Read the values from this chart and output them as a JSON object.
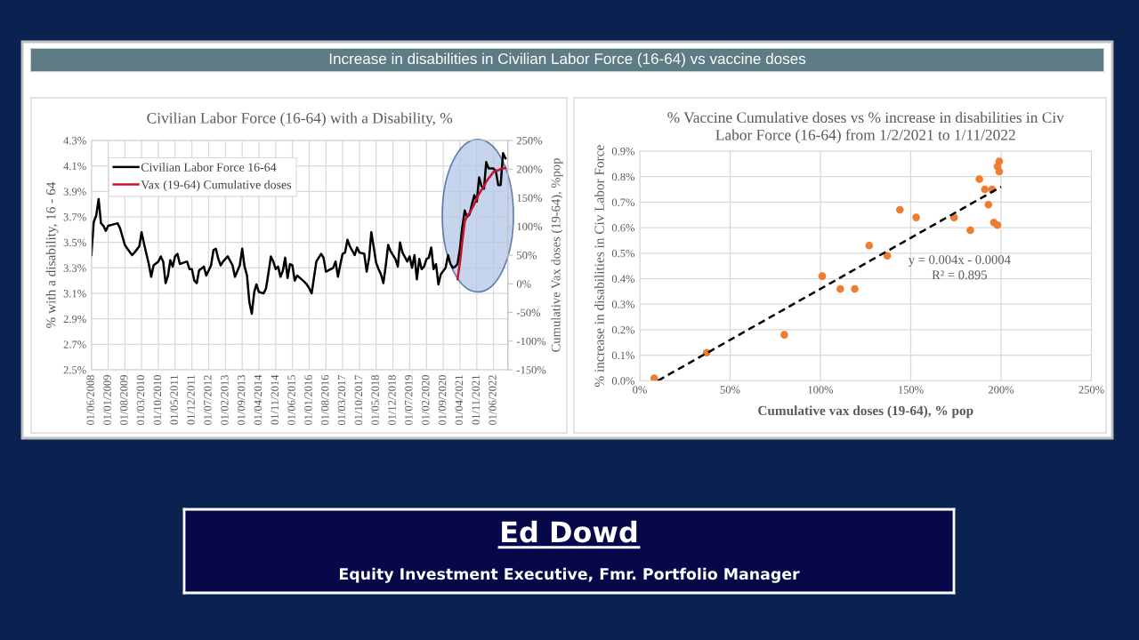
{
  "chart_data": [
    {
      "type": "other",
      "title": "Increase in disabilities in Civilian Labor Force (16-64) vs vaccine doses"
    },
    {
      "type": "line",
      "title": "Civilian Labor Force (16-64) with a Disability, %",
      "ylabel": "% with a disability, 16 - 64",
      "y2label": "Cumulative Vax doses (19-64), %pop",
      "x": [
        "2008-06",
        "2008-07",
        "2008-08",
        "2008-09",
        "2008-10",
        "2008-11",
        "2008-12",
        "2009-01",
        "2009-03",
        "2009-05",
        "2009-06",
        "2009-08",
        "2009-09",
        "2009-11",
        "2009-12",
        "2010-02",
        "2010-03",
        "2010-04",
        "2010-06",
        "2010-07",
        "2010-08",
        "2010-10",
        "2010-11",
        "2010-12",
        "2011-01",
        "2011-02",
        "2011-03",
        "2011-04",
        "2011-05",
        "2011-06",
        "2011-07",
        "2011-10",
        "2011-11",
        "2011-12",
        "2012-01",
        "2012-02",
        "2012-03",
        "2012-05",
        "2012-06",
        "2012-08",
        "2012-09",
        "2012-10",
        "2012-11",
        "2012-12",
        "2013-01",
        "2013-03",
        "2013-05",
        "2013-06",
        "2013-08",
        "2013-09",
        "2013-10",
        "2013-11",
        "2013-12",
        "2014-01",
        "2014-02",
        "2014-03",
        "2014-04",
        "2014-06",
        "2014-07",
        "2014-08",
        "2014-09",
        "2014-10",
        "2014-11",
        "2014-12",
        "2015-01",
        "2015-02",
        "2015-03",
        "2015-04",
        "2015-05",
        "2015-06",
        "2015-07",
        "2015-08",
        "2015-11",
        "2015-12",
        "2016-01",
        "2016-02",
        "2016-03",
        "2016-04",
        "2016-05",
        "2016-06",
        "2016-07",
        "2016-08",
        "2016-11",
        "2016-12",
        "2017-01",
        "2017-02",
        "2017-03",
        "2017-04",
        "2017-05",
        "2017-06",
        "2017-08",
        "2017-09",
        "2017-10",
        "2017-12",
        "2018-01",
        "2018-02",
        "2018-03",
        "2018-04",
        "2018-05",
        "2018-06",
        "2018-07",
        "2018-08",
        "2018-09",
        "2018-10",
        "2018-11",
        "2019-01",
        "2019-02",
        "2019-03",
        "2019-04",
        "2019-06",
        "2019-07",
        "2019-08",
        "2019-09",
        "2019-10",
        "2019-11",
        "2019-12",
        "2020-01",
        "2020-02",
        "2020-03",
        "2020-04",
        "2020-05",
        "2020-06",
        "2020-07",
        "2020-08",
        "2020-10",
        "2020-11",
        "2020-12",
        "2021-01",
        "2021-02",
        "2021-03",
        "2021-04",
        "2021-05",
        "2021-06",
        "2021-07",
        "2021-08",
        "2021-09",
        "2021-10",
        "2021-11",
        "2021-12",
        "2022-01",
        "2022-02",
        "2022-03",
        "2022-04",
        "2022-06",
        "2022-07",
        "2022-08",
        "2022-09",
        "2022-10",
        "2022-11"
      ],
      "series": [
        {
          "name": "Civilian Labor Force 16-64",
          "color": "#000000",
          "values": [
            3.4,
            3.66,
            3.71,
            3.84,
            3.65,
            3.63,
            3.59,
            3.63,
            3.64,
            3.65,
            3.61,
            3.48,
            3.45,
            3.4,
            3.42,
            3.47,
            3.58,
            3.49,
            3.33,
            3.23,
            3.32,
            3.35,
            3.39,
            3.35,
            3.18,
            3.24,
            3.36,
            3.31,
            3.39,
            3.41,
            3.33,
            3.35,
            3.29,
            3.29,
            3.2,
            3.18,
            3.28,
            3.31,
            3.24,
            3.32,
            3.44,
            3.45,
            3.37,
            3.32,
            3.35,
            3.39,
            3.32,
            3.23,
            3.32,
            3.45,
            3.31,
            3.24,
            3.03,
            2.94,
            3.11,
            3.17,
            3.11,
            3.1,
            3.14,
            3.26,
            3.39,
            3.35,
            3.29,
            3.31,
            3.23,
            3.28,
            3.38,
            3.22,
            3.33,
            3.32,
            3.2,
            3.24,
            3.19,
            3.17,
            3.14,
            3.1,
            3.22,
            3.35,
            3.38,
            3.41,
            3.38,
            3.27,
            3.3,
            3.35,
            3.23,
            3.33,
            3.41,
            3.42,
            3.52,
            3.47,
            3.4,
            3.46,
            3.42,
            3.41,
            3.27,
            3.38,
            3.58,
            3.46,
            3.34,
            3.29,
            3.25,
            3.18,
            3.32,
            3.48,
            3.43,
            3.37,
            3.31,
            3.5,
            3.42,
            3.35,
            3.39,
            3.3,
            3.4,
            3.21,
            3.37,
            3.29,
            3.31,
            3.37,
            3.38,
            3.46,
            3.29,
            3.33,
            3.17,
            3.25,
            3.3,
            3.4,
            3.33,
            3.3,
            3.31,
            3.33,
            3.45,
            3.62,
            3.75,
            3.7,
            3.72,
            3.8,
            3.87,
            3.82,
            4.01,
            3.94,
            3.92,
            4.13,
            4.08,
            4.08,
            4.06,
            3.95,
            3.95,
            4.2,
            4.16
          ]
        },
        {
          "name": "Vax (19-64) Cumulative doses",
          "color": "#c8102e",
          "axis": "y2",
          "x": [
            "2021-03",
            "2021-04",
            "2021-05",
            "2021-06",
            "2021-07",
            "2021-08",
            "2021-09",
            "2021-10",
            "2021-11",
            "2021-12",
            "2022-01",
            "2022-02",
            "2022-03",
            "2022-04",
            "2022-05",
            "2022-06",
            "2022-07",
            "2022-08",
            "2022-09",
            "2022-10",
            "2022-11"
          ],
          "values": [
            8,
            37,
            74,
            108,
            118,
            123,
            131,
            139,
            149,
            157,
            164,
            170,
            178,
            184,
            189,
            195,
            197,
            198,
            200,
            201,
            202
          ]
        }
      ],
      "xlim": [
        "2008-06",
        "2022-12"
      ],
      "xticks": [
        {
          "value": "2008-06",
          "label": "01/06/2008"
        },
        {
          "value": "2009-01",
          "label": "01/01/2009"
        },
        {
          "value": "2009-08",
          "label": "01/08/2009"
        },
        {
          "value": "2010-03",
          "label": "01/03/2010"
        },
        {
          "value": "2010-10",
          "label": "01/10/2010"
        },
        {
          "value": "2011-05",
          "label": "01/05/2011"
        },
        {
          "value": "2011-12",
          "label": "01/12/2011"
        },
        {
          "value": "2012-07",
          "label": "01/07/2012"
        },
        {
          "value": "2013-02",
          "label": "01/02/2013"
        },
        {
          "value": "2013-09",
          "label": "01/09/2013"
        },
        {
          "value": "2014-04",
          "label": "01/04/2014"
        },
        {
          "value": "2014-11",
          "label": "01/11/2014"
        },
        {
          "value": "2015-06",
          "label": "01/06/2015"
        },
        {
          "value": "2016-01",
          "label": "01/01/2016"
        },
        {
          "value": "2016-08",
          "label": "01/08/2016"
        },
        {
          "value": "2017-03",
          "label": "01/03/2017"
        },
        {
          "value": "2017-10",
          "label": "01/10/2017"
        },
        {
          "value": "2018-05",
          "label": "01/05/2018"
        },
        {
          "value": "2018-12",
          "label": "01/12/2018"
        },
        {
          "value": "2019-07",
          "label": "01/07/2019"
        },
        {
          "value": "2020-02",
          "label": "01/02/2020"
        },
        {
          "value": "2020-09",
          "label": "01/09/2020"
        },
        {
          "value": "2021-04",
          "label": "01/04/2021"
        },
        {
          "value": "2021-11",
          "label": "01/11/2021"
        },
        {
          "value": "2022-06",
          "label": "01/06/2022"
        }
      ],
      "ylim": [
        2.5,
        4.3
      ],
      "yticks": [
        {
          "value": 2.5,
          "label": "2.5%"
        },
        {
          "value": 2.7,
          "label": "2.7%"
        },
        {
          "value": 2.9,
          "label": "2.9%"
        },
        {
          "value": 3.1,
          "label": "3.1%"
        },
        {
          "value": 3.3,
          "label": "3.3%"
        },
        {
          "value": 3.5,
          "label": "3.5%"
        },
        {
          "value": 3.7,
          "label": "3.7%"
        },
        {
          "value": 3.9,
          "label": "3.9%"
        },
        {
          "value": 4.1,
          "label": "4.1%"
        },
        {
          "value": 4.3,
          "label": "4.3%"
        }
      ],
      "y2lim": [
        -150,
        250
      ],
      "y2ticks": [
        {
          "value": -150,
          "label": "-150%"
        },
        {
          "value": -100,
          "label": "-100%"
        },
        {
          "value": -50,
          "label": "-50%"
        },
        {
          "value": 0,
          "label": "0%"
        },
        {
          "value": 50,
          "label": "50%"
        },
        {
          "value": 100,
          "label": "100%"
        },
        {
          "value": 150,
          "label": "150%"
        },
        {
          "value": 200,
          "label": "200%"
        },
        {
          "value": 250,
          "label": "250%"
        }
      ],
      "grid": true,
      "legend": "top left"
    },
    {
      "type": "scatter",
      "title": "% Vaccine Cumulative doses vs % increase in disabilities in Civ Labor Force (16-64) from 1/2/2021 to 1/11/2022",
      "xlabel": "Cumulative vax doses (19-64), % pop",
      "ylabel": "% increase in disabilities in Civ Labor Force",
      "series": [
        {
          "type": "scatter",
          "color": "#ed7d31",
          "marker": "circle",
          "x": [
            8,
            37,
            80,
            101,
            111,
            119,
            127,
            137,
            144,
            153,
            174,
            183,
            188,
            191,
            193,
            195,
            196,
            198,
            198,
            199,
            199
          ],
          "values": [
            0.01,
            0.11,
            0.18,
            0.41,
            0.36,
            0.36,
            0.53,
            0.49,
            0.67,
            0.64,
            0.64,
            0.59,
            0.79,
            0.75,
            0.69,
            0.75,
            0.62,
            0.61,
            0.84,
            0.86,
            0.82
          ]
        },
        {
          "type": "line",
          "color": "#000000",
          "line_style": "dashed",
          "x": [
            10,
            200
          ],
          "values": [
            0,
            0.76
          ]
        }
      ],
      "xlim": [
        0,
        250
      ],
      "xticks": [
        {
          "value": 0,
          "label": "0%"
        },
        {
          "value": 50,
          "label": "50%"
        },
        {
          "value": 100,
          "label": "100%"
        },
        {
          "value": 150,
          "label": "150%"
        },
        {
          "value": 200,
          "label": "200%"
        },
        {
          "value": 250,
          "label": "250%"
        }
      ],
      "ylim": [
        0,
        0.9
      ],
      "yticks": [
        {
          "value": 0,
          "label": "0.0%"
        },
        {
          "value": 0.1,
          "label": "0.1%"
        },
        {
          "value": 0.2,
          "label": "0.2%"
        },
        {
          "value": 0.3,
          "label": "0.3%"
        },
        {
          "value": 0.4,
          "label": "0.4%"
        },
        {
          "value": 0.5,
          "label": "0.5%"
        },
        {
          "value": 0.6,
          "label": "0.6%"
        },
        {
          "value": 0.7,
          "label": "0.7%"
        },
        {
          "value": 0.8,
          "label": "0.8%"
        },
        {
          "value": 0.9,
          "label": "0.9%"
        }
      ],
      "grid": true,
      "annotations": [
        "y = 0.004x - 0.0004",
        "R² = 0.895"
      ]
    },
    {
      "type": "other",
      "title": "Ed Dowd",
      "subtitle": "Equity Investment Executive, Fmr. Portfolio Manager"
    }
  ]
}
